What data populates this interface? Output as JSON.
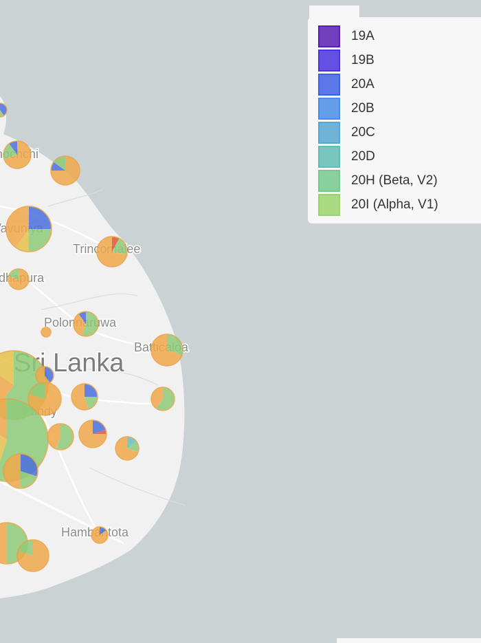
{
  "map": {
    "places": [
      {
        "label": "Kilinochchi",
        "x": -30,
        "y": 230
      },
      {
        "label": "Vavuniya",
        "x": -10,
        "y": 338
      },
      {
        "label": "Trincomalee",
        "x": 106,
        "y": 368
      },
      {
        "label": "Anuradhapura",
        "x": -50,
        "y": 410
      },
      {
        "label": "Polonnaruwa",
        "x": 64,
        "y": 475
      },
      {
        "label": "Batticaloa",
        "x": 195,
        "y": 511
      },
      {
        "label": "Kandy",
        "x": 32,
        "y": 604
      },
      {
        "label": "Hambantota",
        "x": 89,
        "y": 780
      }
    ],
    "country": "Sri Lanka"
  },
  "legend": {
    "items": [
      {
        "name": "19A",
        "color": "#5a1eb5"
      },
      {
        "name": "19B",
        "color": "#4a34e0"
      },
      {
        "name": "20A",
        "color": "#3f60e6"
      },
      {
        "name": "20B",
        "color": "#4a8de6"
      },
      {
        "name": "20C",
        "color": "#57a7d4"
      },
      {
        "name": "20D",
        "color": "#62bdb5"
      },
      {
        "name": "20H (Beta, V2)",
        "color": "#74c98c"
      },
      {
        "name": "20I (Alpha, V1)",
        "color": "#9bd56c"
      }
    ]
  }
}
